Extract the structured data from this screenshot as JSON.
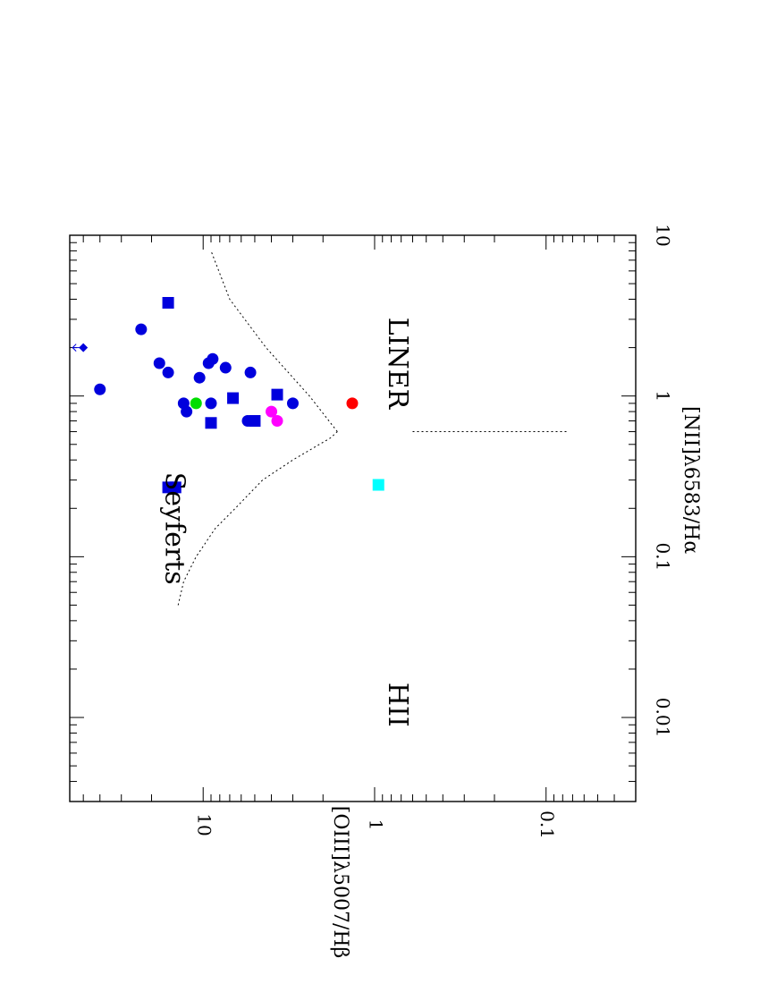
{
  "chart_data": {
    "type": "scatter",
    "orientation": "rotated-90-clockwise",
    "x_axis": {
      "label": "[NII]λ6583/Hα",
      "scale": "log",
      "range": [
        0.003,
        10
      ],
      "tick_labels": [
        {
          "value": 0.01,
          "text": "0.01"
        },
        {
          "value": 0.1,
          "text": "0.1"
        },
        {
          "value": 1,
          "text": "1"
        },
        {
          "value": 10,
          "text": "10"
        }
      ]
    },
    "y_axis": {
      "label": "[OIII]λ5007/Hβ",
      "scale": "log",
      "range": [
        0.03,
        60
      ],
      "tick_labels": [
        {
          "value": 0.1,
          "text": "0.1"
        },
        {
          "value": 1,
          "text": "1"
        },
        {
          "value": 10,
          "text": "10"
        }
      ]
    },
    "region_labels": [
      {
        "text": "Seyferts",
        "x": 0.15,
        "y": 15
      },
      {
        "text": "LINER",
        "x": 1.6,
        "y": 0.75
      },
      {
        "text": "HII",
        "x": 0.012,
        "y": 0.75
      }
    ],
    "dividing_lines": [
      {
        "name": "hii-boundary",
        "points": [
          [
            0.05,
            14
          ],
          [
            0.07,
            13
          ],
          [
            0.1,
            11
          ],
          [
            0.15,
            8.5
          ],
          [
            0.2,
            6.5
          ],
          [
            0.3,
            4.5
          ],
          [
            0.4,
            3.0
          ],
          [
            0.5,
            2.1
          ],
          [
            0.55,
            1.8
          ],
          [
            0.6,
            1.65
          ]
        ]
      },
      {
        "name": "seyfert-liner-boundary",
        "points": [
          [
            0.6,
            1.65
          ],
          [
            1.0,
            2.4
          ],
          [
            2.0,
            4.3
          ],
          [
            4.0,
            7.0
          ],
          [
            8.0,
            9.0
          ]
        ]
      },
      {
        "name": "liner-hii-vertical",
        "points": [
          [
            0.6,
            0.6
          ],
          [
            0.6,
            0.075
          ]
        ]
      }
    ],
    "series": [
      {
        "marker": "circle",
        "color": "#0000dd",
        "points": [
          {
            "x": 1.1,
            "y": 40
          },
          {
            "x": 2.6,
            "y": 23
          },
          {
            "x": 1.6,
            "y": 18
          },
          {
            "x": 1.4,
            "y": 16
          },
          {
            "x": 0.9,
            "y": 13
          },
          {
            "x": 0.8,
            "y": 12.5
          },
          {
            "x": 1.3,
            "y": 10.5
          },
          {
            "x": 1.6,
            "y": 9.3
          },
          {
            "x": 1.7,
            "y": 8.8
          },
          {
            "x": 0.9,
            "y": 9.0
          },
          {
            "x": 1.5,
            "y": 7.4
          },
          {
            "x": 1.4,
            "y": 5.3
          },
          {
            "x": 0.7,
            "y": 5.5
          },
          {
            "x": 0.9,
            "y": 3.0
          }
        ]
      },
      {
        "marker": "square",
        "color": "#0000dd",
        "points": [
          {
            "x": 3.8,
            "y": 16
          },
          {
            "x": 0.27,
            "y": 16
          },
          {
            "x": 0.27,
            "y": 14.5
          },
          {
            "x": 0.68,
            "y": 9.0
          },
          {
            "x": 0.97,
            "y": 6.7
          },
          {
            "x": 0.7,
            "y": 5.0
          },
          {
            "x": 1.02,
            "y": 3.7
          }
        ]
      },
      {
        "marker": "diamond-upper-limit",
        "color": "#0000dd",
        "points": [
          {
            "x": 2.0,
            "y": 50
          }
        ]
      },
      {
        "marker": "circle",
        "color": "#00dd00",
        "points": [
          {
            "x": 0.9,
            "y": 11
          }
        ]
      },
      {
        "marker": "circle",
        "color": "#ff00ff",
        "points": [
          {
            "x": 0.8,
            "y": 4.0
          },
          {
            "x": 0.7,
            "y": 3.7
          }
        ]
      },
      {
        "marker": "circle",
        "color": "#ff0000",
        "points": [
          {
            "x": 0.9,
            "y": 1.35
          }
        ]
      },
      {
        "marker": "square",
        "color": "#00ffff",
        "points": [
          {
            "x": 0.28,
            "y": 0.95
          }
        ]
      }
    ]
  }
}
